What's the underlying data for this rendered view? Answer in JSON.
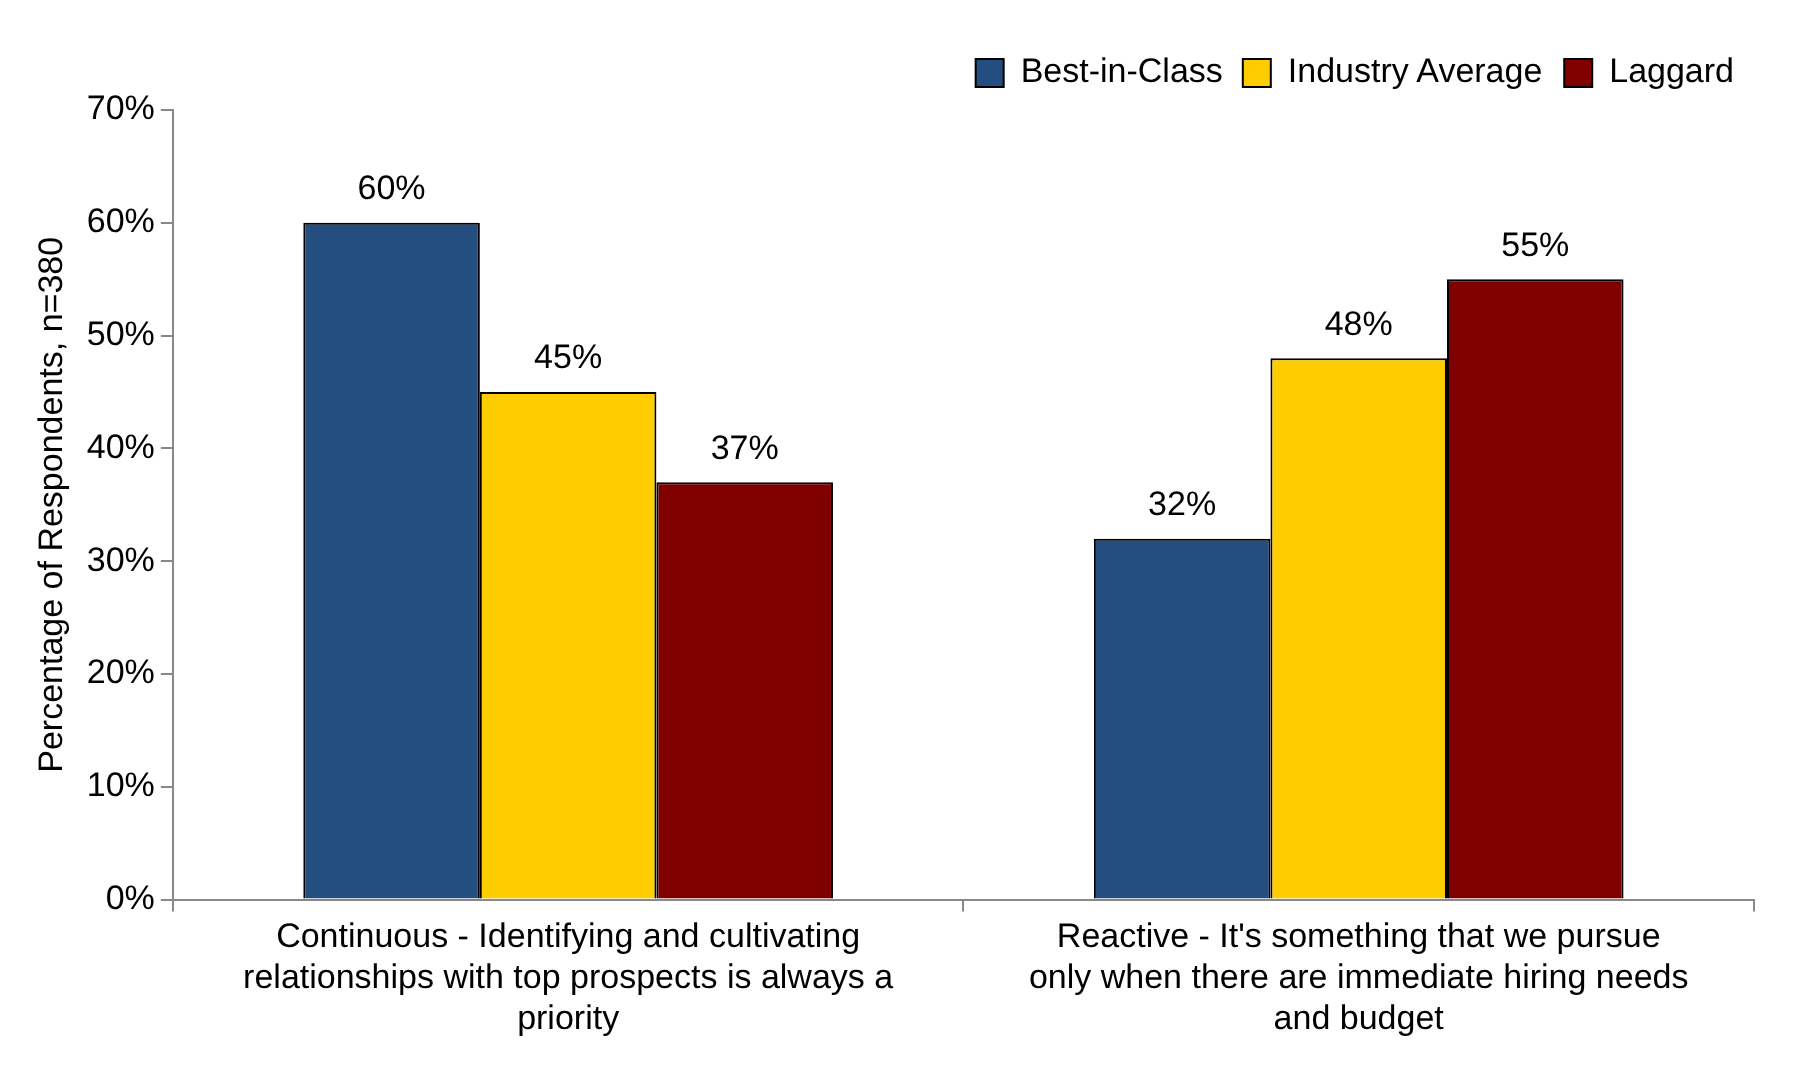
{
  "chart_data": {
    "type": "bar",
    "ylabel": "Percentage of Respondents, n=380",
    "categories": [
      "Continuous - Identifying and cultivating relationships with top prospects is always a priority",
      "Reactive - It's something that we pursue only when there are immediate hiring needs and budget"
    ],
    "series": [
      {
        "name": "Best-in-Class",
        "color": "#254e80",
        "values": [
          60,
          32
        ],
        "value_labels": [
          "60%",
          "32%"
        ]
      },
      {
        "name": "Industry Average",
        "color": "#ffcc00",
        "values": [
          45,
          48
        ],
        "value_labels": [
          "45%",
          "48%"
        ]
      },
      {
        "name": "Laggard",
        "color": "#800000",
        "values": [
          37,
          55
        ],
        "value_labels": [
          "37%",
          "55%"
        ]
      }
    ],
    "ylim": [
      0,
      70
    ],
    "yticks": [
      {
        "value": 0,
        "label": "0%"
      },
      {
        "value": 10,
        "label": "10%"
      },
      {
        "value": 20,
        "label": "20%"
      },
      {
        "value": 30,
        "label": "30%"
      },
      {
        "value": 40,
        "label": "40%"
      },
      {
        "value": 50,
        "label": "50%"
      },
      {
        "value": 60,
        "label": "60%"
      },
      {
        "value": 70,
        "label": "70%"
      }
    ],
    "grid": false,
    "legend": "top right"
  }
}
